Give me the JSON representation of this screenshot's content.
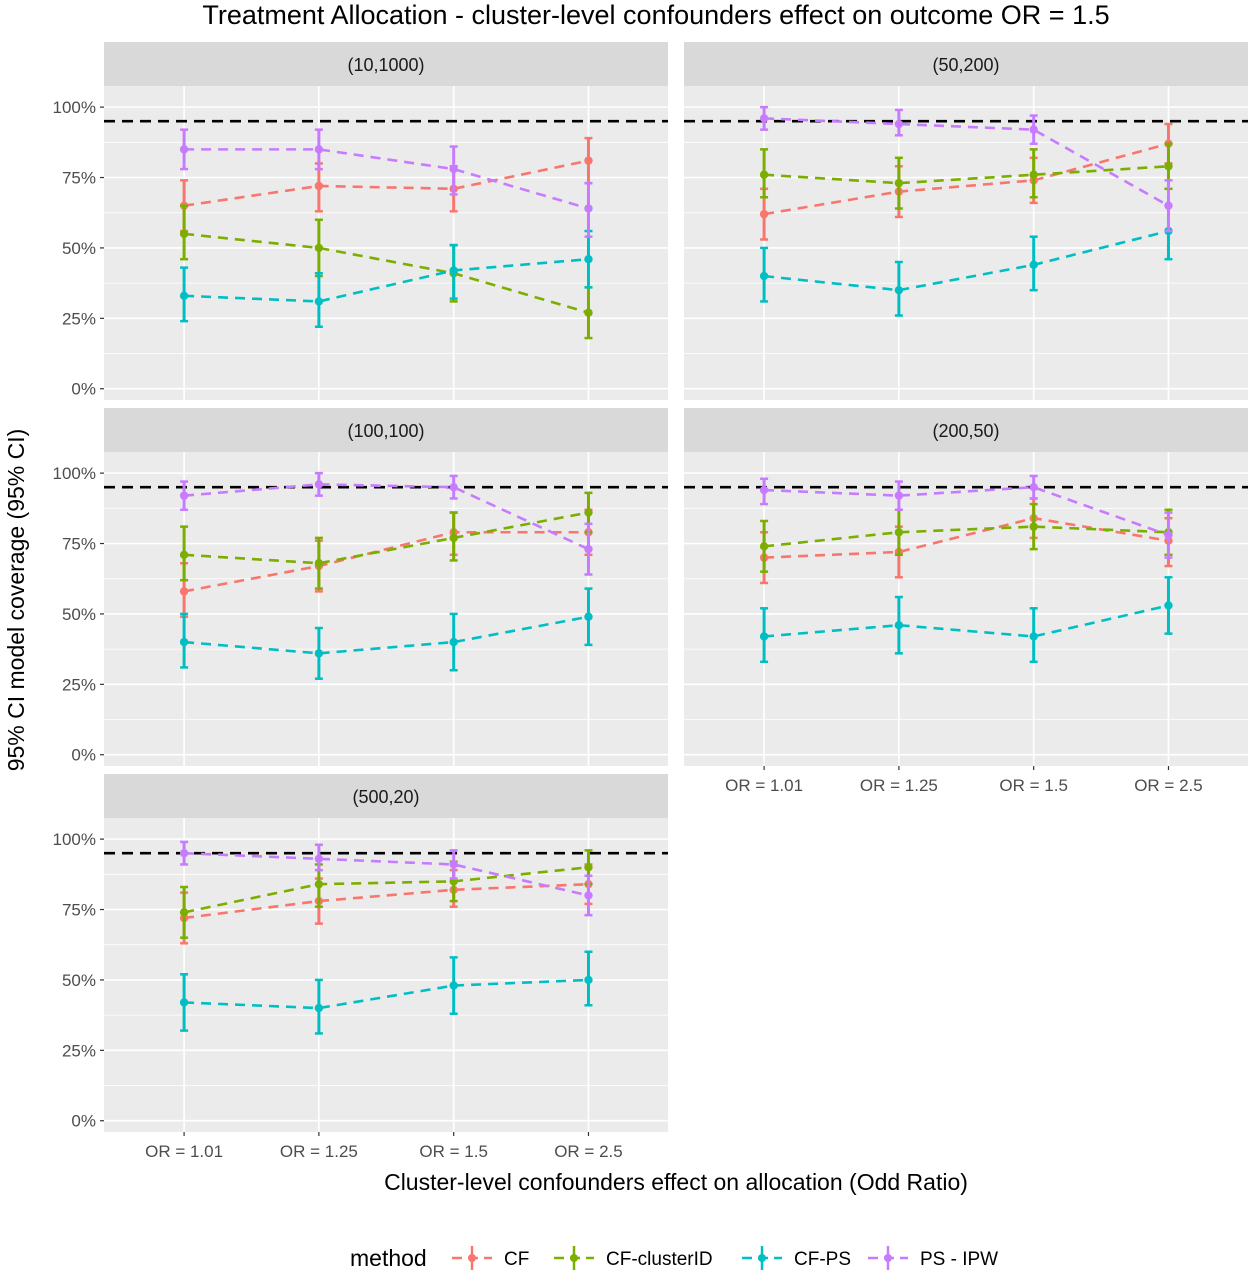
{
  "chart_data": {
    "type": "line",
    "title": "Treatment Allocation - cluster-level confounders effect on outcome OR = 1.5",
    "xlabel": "Cluster-level confounders effect on allocation (Odd Ratio)",
    "ylabel": "95% CI model coverage (95% CI)",
    "categories": [
      "OR = 1.01",
      "OR = 1.25",
      "OR = 1.5",
      "OR = 2.5"
    ],
    "y_ticks": [
      "0%",
      "25%",
      "50%",
      "75%",
      "100%"
    ],
    "ylim": [
      0,
      1.0
    ],
    "reference_line": 0.95,
    "grid": true,
    "legend": {
      "title": "method",
      "position": "bottom",
      "entries": [
        "CF",
        "CF-clusterID",
        "CF-PS",
        "PS - IPW"
      ]
    },
    "colors": {
      "CF": "#F8766D",
      "CF-clusterID": "#7CAE00",
      "CF-PS": "#00BFC4",
      "PS - IPW": "#C77CFF"
    },
    "panels": [
      {
        "label": "(10,1000)",
        "series": [
          {
            "name": "CF",
            "values": [
              0.65,
              0.72,
              0.71,
              0.81
            ],
            "lower": [
              0.56,
              0.63,
              0.63,
              0.73
            ],
            "upper": [
              0.74,
              0.8,
              0.79,
              0.89
            ]
          },
          {
            "name": "CF-clusterID",
            "values": [
              0.55,
              0.5,
              0.41,
              0.27
            ],
            "lower": [
              0.46,
              0.4,
              0.31,
              0.18
            ],
            "upper": [
              0.65,
              0.6,
              0.51,
              0.36
            ]
          },
          {
            "name": "CF-PS",
            "values": [
              0.33,
              0.31,
              0.42,
              0.46
            ],
            "lower": [
              0.24,
              0.22,
              0.32,
              0.36
            ],
            "upper": [
              0.43,
              0.41,
              0.51,
              0.56
            ]
          },
          {
            "name": "PS - IPW",
            "values": [
              0.85,
              0.85,
              0.78,
              0.64
            ],
            "lower": [
              0.78,
              0.78,
              0.69,
              0.54
            ],
            "upper": [
              0.92,
              0.92,
              0.86,
              0.73
            ]
          }
        ]
      },
      {
        "label": "(50,200)",
        "series": [
          {
            "name": "CF",
            "values": [
              0.62,
              0.7,
              0.74,
              0.87
            ],
            "lower": [
              0.53,
              0.61,
              0.66,
              0.8
            ],
            "upper": [
              0.71,
              0.79,
              0.82,
              0.94
            ]
          },
          {
            "name": "CF-clusterID",
            "values": [
              0.76,
              0.73,
              0.76,
              0.79
            ],
            "lower": [
              0.68,
              0.64,
              0.68,
              0.71
            ],
            "upper": [
              0.85,
              0.82,
              0.85,
              0.87
            ]
          },
          {
            "name": "CF-PS",
            "values": [
              0.4,
              0.35,
              0.44,
              0.56
            ],
            "lower": [
              0.31,
              0.26,
              0.35,
              0.46
            ],
            "upper": [
              0.5,
              0.45,
              0.54,
              0.65
            ]
          },
          {
            "name": "PS - IPW",
            "values": [
              0.96,
              0.94,
              0.92,
              0.65
            ],
            "lower": [
              0.92,
              0.9,
              0.87,
              0.56
            ],
            "upper": [
              1.0,
              0.99,
              0.97,
              0.74
            ]
          }
        ]
      },
      {
        "label": "(100,100)",
        "series": [
          {
            "name": "CF",
            "values": [
              0.58,
              0.67,
              0.79,
              0.79
            ],
            "lower": [
              0.49,
              0.58,
              0.71,
              0.71
            ],
            "upper": [
              0.68,
              0.76,
              0.86,
              0.87
            ]
          },
          {
            "name": "CF-clusterID",
            "values": [
              0.71,
              0.68,
              0.77,
              0.86
            ],
            "lower": [
              0.62,
              0.59,
              0.69,
              0.79
            ],
            "upper": [
              0.81,
              0.77,
              0.86,
              0.93
            ]
          },
          {
            "name": "CF-PS",
            "values": [
              0.4,
              0.36,
              0.4,
              0.49
            ],
            "lower": [
              0.31,
              0.27,
              0.3,
              0.39
            ],
            "upper": [
              0.5,
              0.45,
              0.5,
              0.59
            ]
          },
          {
            "name": "PS - IPW",
            "values": [
              0.92,
              0.96,
              0.95,
              0.73
            ],
            "lower": [
              0.87,
              0.92,
              0.91,
              0.64
            ],
            "upper": [
              0.97,
              1.0,
              0.99,
              0.82
            ]
          }
        ]
      },
      {
        "label": "(200,50)",
        "series": [
          {
            "name": "CF",
            "values": [
              0.7,
              0.72,
              0.84,
              0.76
            ],
            "lower": [
              0.61,
              0.63,
              0.77,
              0.67
            ],
            "upper": [
              0.79,
              0.81,
              0.91,
              0.84
            ]
          },
          {
            "name": "CF-clusterID",
            "values": [
              0.74,
              0.79,
              0.81,
              0.79
            ],
            "lower": [
              0.65,
              0.71,
              0.73,
              0.71
            ],
            "upper": [
              0.83,
              0.87,
              0.89,
              0.87
            ]
          },
          {
            "name": "CF-PS",
            "values": [
              0.42,
              0.46,
              0.42,
              0.53
            ],
            "lower": [
              0.33,
              0.36,
              0.33,
              0.43
            ],
            "upper": [
              0.52,
              0.56,
              0.52,
              0.63
            ]
          },
          {
            "name": "PS - IPW",
            "values": [
              0.94,
              0.92,
              0.95,
              0.78
            ],
            "lower": [
              0.89,
              0.87,
              0.91,
              0.7
            ],
            "upper": [
              0.98,
              0.97,
              0.99,
              0.86
            ]
          }
        ]
      },
      {
        "label": "(500,20)",
        "series": [
          {
            "name": "CF",
            "values": [
              0.72,
              0.78,
              0.82,
              0.84
            ],
            "lower": [
              0.63,
              0.7,
              0.76,
              0.77
            ],
            "upper": [
              0.81,
              0.86,
              0.89,
              0.91
            ]
          },
          {
            "name": "CF-clusterID",
            "values": [
              0.74,
              0.84,
              0.85,
              0.9
            ],
            "lower": [
              0.65,
              0.76,
              0.78,
              0.84
            ],
            "upper": [
              0.83,
              0.91,
              0.92,
              0.96
            ]
          },
          {
            "name": "CF-PS",
            "values": [
              0.42,
              0.4,
              0.48,
              0.5
            ],
            "lower": [
              0.32,
              0.31,
              0.38,
              0.41
            ],
            "upper": [
              0.52,
              0.5,
              0.58,
              0.6
            ]
          },
          {
            "name": "PS - IPW",
            "values": [
              0.95,
              0.93,
              0.91,
              0.8
            ],
            "lower": [
              0.91,
              0.89,
              0.86,
              0.73
            ],
            "upper": [
              0.99,
              0.98,
              0.96,
              0.87
            ]
          }
        ]
      }
    ]
  }
}
